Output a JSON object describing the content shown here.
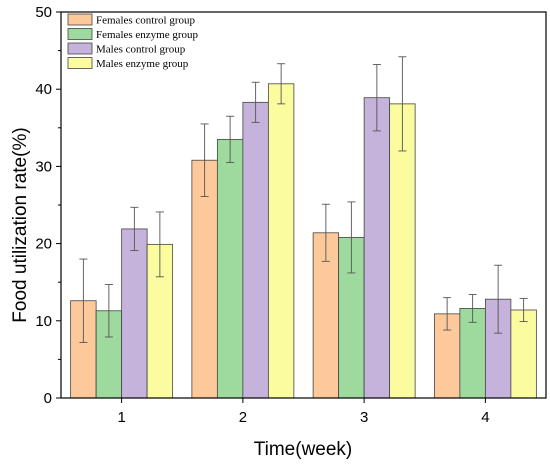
{
  "chart_data": {
    "type": "bar",
    "title": "",
    "xlabel": "Time(week)",
    "ylabel": "Food utilization rate(%)",
    "ylim": [
      0,
      50
    ],
    "yticks": [
      0,
      10,
      20,
      30,
      40,
      50
    ],
    "categories": [
      "1",
      "2",
      "3",
      "4"
    ],
    "grid": false,
    "legend_position": "top-left",
    "error_bars": true,
    "series": [
      {
        "name": "Females control group",
        "color": "#fdc99b",
        "values": [
          12.6,
          30.8,
          21.4,
          10.9
        ],
        "errors": [
          5.4,
          4.7,
          3.7,
          2.1
        ]
      },
      {
        "name": "Females enzyme group",
        "color": "#9ed99e",
        "values": [
          11.3,
          33.5,
          20.8,
          11.6
        ],
        "errors": [
          3.4,
          3.0,
          4.6,
          1.8
        ]
      },
      {
        "name": "Males control group",
        "color": "#c5b3dc",
        "values": [
          21.9,
          38.3,
          38.9,
          12.8
        ],
        "errors": [
          2.8,
          2.6,
          4.3,
          4.4
        ]
      },
      {
        "name": "Males enzyme group",
        "color": "#fbfba0",
        "values": [
          19.9,
          40.7,
          38.1,
          11.4
        ],
        "errors": [
          4.2,
          2.6,
          6.1,
          1.5
        ]
      }
    ]
  }
}
